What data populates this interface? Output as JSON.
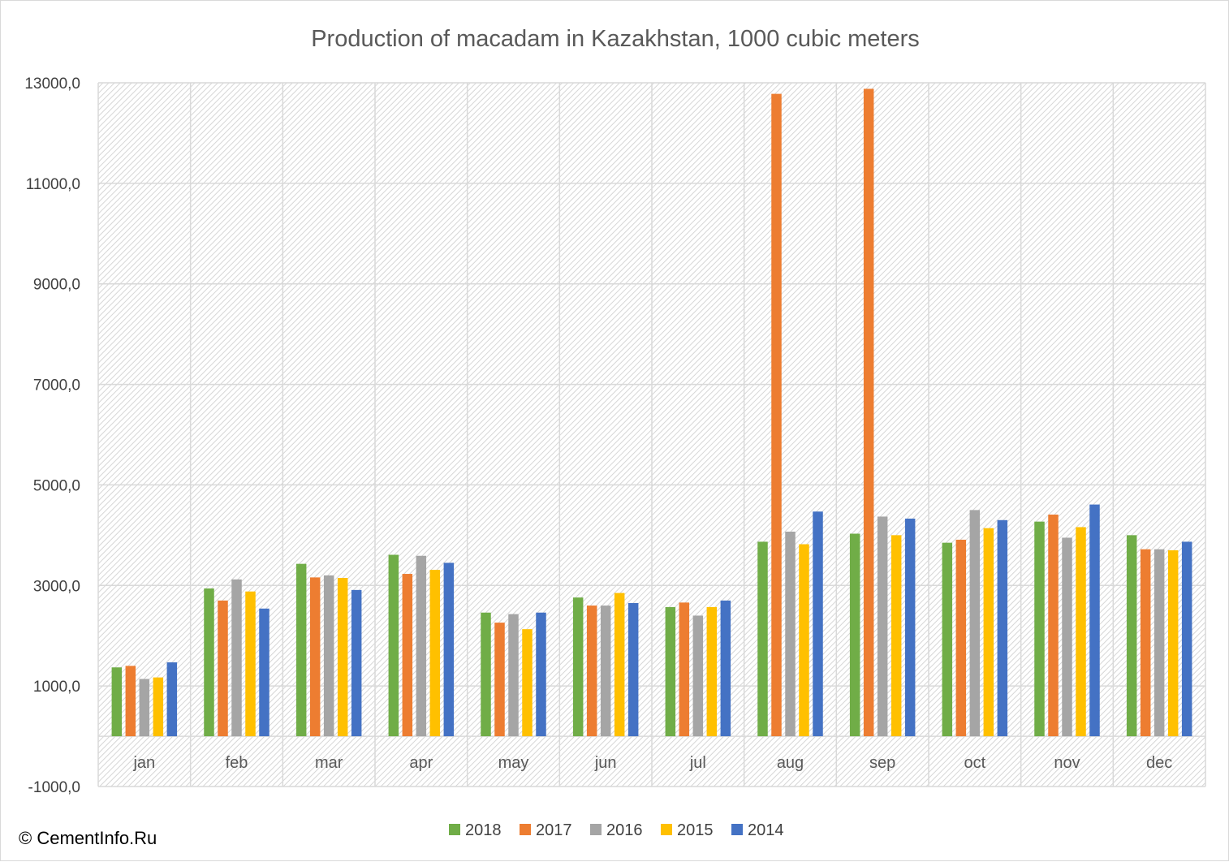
{
  "copyright": "© CementInfo.Ru",
  "chart_data": {
    "type": "bar",
    "title": "Production of macadam in Kazakhstan, 1000 cubic meters",
    "categories": [
      "jan",
      "feb",
      "mar",
      "apr",
      "may",
      "jun",
      "jul",
      "aug",
      "sep",
      "oct",
      "nov",
      "dec"
    ],
    "series": [
      {
        "name": "2018",
        "color": "#70ad47",
        "values": [
          1370,
          2940,
          3430,
          3610,
          2460,
          2760,
          2570,
          3870,
          4030,
          3850,
          4270,
          4000
        ]
      },
      {
        "name": "2017",
        "color": "#ed7d31",
        "values": [
          1400,
          2700,
          3160,
          3230,
          2260,
          2600,
          2660,
          12780,
          12880,
          3910,
          4410,
          3720
        ]
      },
      {
        "name": "2016",
        "color": "#a5a5a5",
        "values": [
          1140,
          3120,
          3200,
          3590,
          2430,
          2600,
          2400,
          4070,
          4370,
          4500,
          3950,
          3720
        ]
      },
      {
        "name": "2015",
        "color": "#ffc000",
        "values": [
          1170,
          2880,
          3150,
          3310,
          2130,
          2850,
          2570,
          3820,
          4000,
          4140,
          4160,
          3700
        ]
      },
      {
        "name": "2014",
        "color": "#4472c4",
        "values": [
          1470,
          2540,
          2910,
          3450,
          2460,
          2650,
          2700,
          4470,
          4330,
          4300,
          4610,
          3870
        ]
      }
    ],
    "yticks": [
      "13000,0",
      "11000,0",
      "9000,0",
      "7000,0",
      "5000,0",
      "3000,0",
      "1000,0",
      "-1000,0"
    ],
    "ylim": [
      -1000,
      13000
    ],
    "baseline": 0,
    "grid": true,
    "legend_position": "bottom"
  }
}
